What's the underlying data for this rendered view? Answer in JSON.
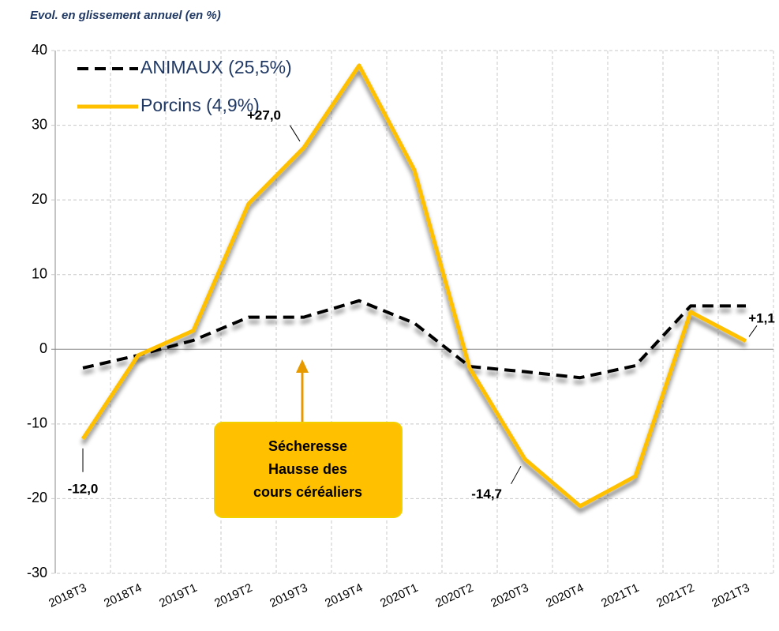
{
  "chart_data": {
    "type": "line",
    "subtitle": "Evol. en glissement annuel (en %)",
    "categories": [
      "2018T3",
      "2018T4",
      "2019T1",
      "2019T2",
      "2019T3",
      "2019T4",
      "2020T1",
      "2020T2",
      "2020T3",
      "2020T4",
      "2021T1",
      "2021T2",
      "2021T3"
    ],
    "series": [
      {
        "name": "ANIMAUX (25,5%)",
        "color": "#000000",
        "dash": true,
        "values": [
          -2.5,
          -0.8,
          1.2,
          4.3,
          4.3,
          6.5,
          3.5,
          -2.3,
          -3.0,
          -3.8,
          -2.2,
          5.8,
          5.8
        ]
      },
      {
        "name": "Porcins (4,9%)",
        "color": "#ffc000",
        "dash": false,
        "values": [
          -12.0,
          -0.8,
          2.5,
          19.5,
          27.0,
          38.0,
          24.0,
          -2.5,
          -14.7,
          -21.0,
          -17.0,
          5.0,
          1.1
        ],
        "value_labels": [
          "-12,0",
          null,
          null,
          null,
          "+27,0",
          null,
          null,
          null,
          "-14,7",
          null,
          null,
          null,
          "+1,1"
        ]
      }
    ],
    "ylim": [
      -30,
      40
    ],
    "yticks": [
      -30,
      -20,
      -10,
      0,
      10,
      20,
      30,
      40
    ],
    "grid": true,
    "annotation": {
      "lines": [
        "Sécheresse",
        "Hausse des",
        "cours céréaliers"
      ],
      "color": "#ffc000"
    }
  }
}
